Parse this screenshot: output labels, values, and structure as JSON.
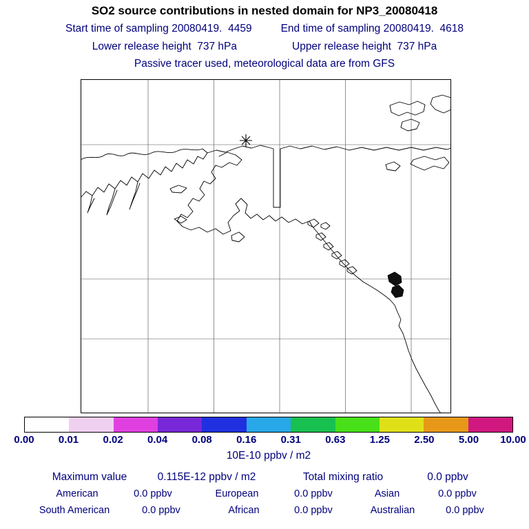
{
  "header": {
    "title": "SO2 source contributions in nested domain for NP3_20080418",
    "start_time": "Start time of sampling 20080419.  4459",
    "end_time": "End time of sampling 20080419.  4618",
    "lower_release": "Lower release height  737 hPa",
    "upper_release": "Upper release height  737 hPa",
    "tracer_line": "Passive tracer used, meteorological data are from GFS"
  },
  "map": {
    "marker_icon": "asterisk-star-marker",
    "region_shown": "Chukotka / Alaska / North American west coast"
  },
  "colorbar": {
    "tick_labels": [
      "0.00",
      "0.01",
      "0.02",
      "0.04",
      "0.08",
      "0.16",
      "0.31",
      "0.63",
      "1.25",
      "2.50",
      "5.00",
      "10.00"
    ],
    "segment_colors": [
      "#ffffff",
      "#f0d0f0",
      "#e040e0",
      "#7828d8",
      "#2030e0",
      "#28a8e8",
      "#18c050",
      "#48e018",
      "#e0e018",
      "#e89818",
      "#d01880"
    ],
    "units": "10E-10 ppbv / m2"
  },
  "stats": {
    "max_label": "Maximum value",
    "max_value": "0.115E-12 ppbv / m2",
    "total_label": "Total mixing ratio",
    "total_value": "0.0 ppbv",
    "regions": [
      {
        "label": "American",
        "value": "0.0 ppbv"
      },
      {
        "label": "European",
        "value": "0.0 ppbv"
      },
      {
        "label": "Asian",
        "value": "0.0 ppbv"
      },
      {
        "label": "South American",
        "value": "0.0 ppbv"
      },
      {
        "label": "African",
        "value": "0.0 ppbv"
      },
      {
        "label": "Australian",
        "value": "0.0 ppbv"
      }
    ]
  },
  "colors": {
    "text_navy": "#00007d",
    "title_black": "#000000",
    "map_outline": "#000000"
  },
  "chart_data": {
    "type": "heatmap",
    "title": "SO2 source contributions in nested domain for NP3_20080418",
    "subtitles": [
      "Start time of sampling 20080419.  4459",
      "End time of sampling 20080419.  4618",
      "Lower release height  737 hPa",
      "Upper release height  737 hPa",
      "Passive tracer used, meteorological data are from GFS"
    ],
    "colorbar_levels": [
      0.0,
      0.01,
      0.02,
      0.04,
      0.08,
      0.16,
      0.31,
      0.63,
      1.25,
      2.5,
      5.0,
      10.0
    ],
    "colorbar_units": "10E-10 ppbv / m2",
    "legend_position": "bottom",
    "grid": true,
    "annotations": {
      "maximum_value": "0.115E-12 ppbv / m2",
      "total_mixing_ratio": "0.0 ppbv",
      "source_contributions": {
        "American": "0.0 ppbv",
        "European": "0.0 ppbv",
        "Asian": "0.0 ppbv",
        "South American": "0.0 ppbv",
        "African": "0.0 ppbv",
        "Australian": "0.0 ppbv"
      }
    },
    "note": "Map field shows no shaded cells (all contributions ~0); single asterisk marks the sampling/release location near the Arctic coast"
  }
}
